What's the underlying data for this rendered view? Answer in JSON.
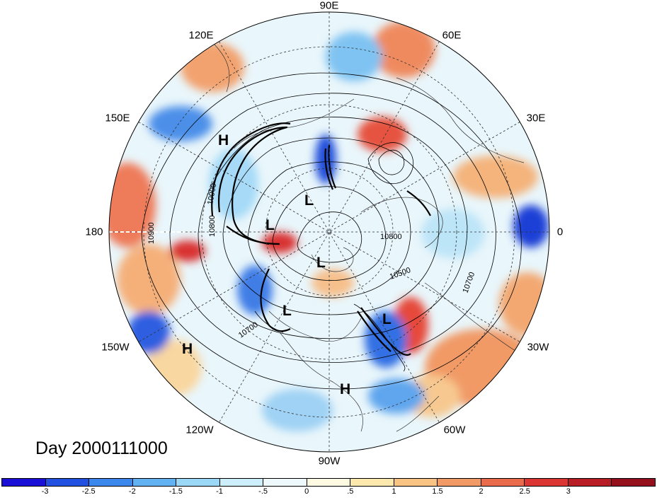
{
  "title": "Day 2000111000",
  "longitude_labels": [
    {
      "text": "90E"
    },
    {
      "text": "60E"
    },
    {
      "text": "30E"
    },
    {
      "text": "0"
    },
    {
      "text": "30W"
    },
    {
      "text": "60W"
    },
    {
      "text": "90W"
    },
    {
      "text": "120W"
    },
    {
      "text": "150W"
    },
    {
      "text": "180"
    },
    {
      "text": "150E"
    },
    {
      "text": "120E"
    }
  ],
  "pressure_centers": [
    {
      "label": "H"
    },
    {
      "label": "L"
    },
    {
      "label": "L"
    },
    {
      "label": "L"
    },
    {
      "label": "L"
    },
    {
      "label": "L"
    },
    {
      "label": "H"
    },
    {
      "label": "H"
    }
  ],
  "contour_labels": [
    "10900",
    "10800",
    "10900",
    "10800",
    "10500",
    "10700",
    "10700"
  ],
  "colorbar": {
    "colors": [
      "#1a0fd6",
      "#2250e0",
      "#3b87eb",
      "#62b2f2",
      "#9bd8f7",
      "#cdeefb",
      "#eef9fc",
      "#fffbe3",
      "#fde9ad",
      "#f9c483",
      "#f19a66",
      "#ea6a4c",
      "#dc3634",
      "#b81d26",
      "#94101c"
    ],
    "labels": [
      "-3",
      "-2.5",
      "-2",
      "-1.5",
      "-1",
      "-.5",
      "0",
      ".5",
      "1",
      "1.5",
      "2",
      "2.5",
      "3"
    ]
  }
}
